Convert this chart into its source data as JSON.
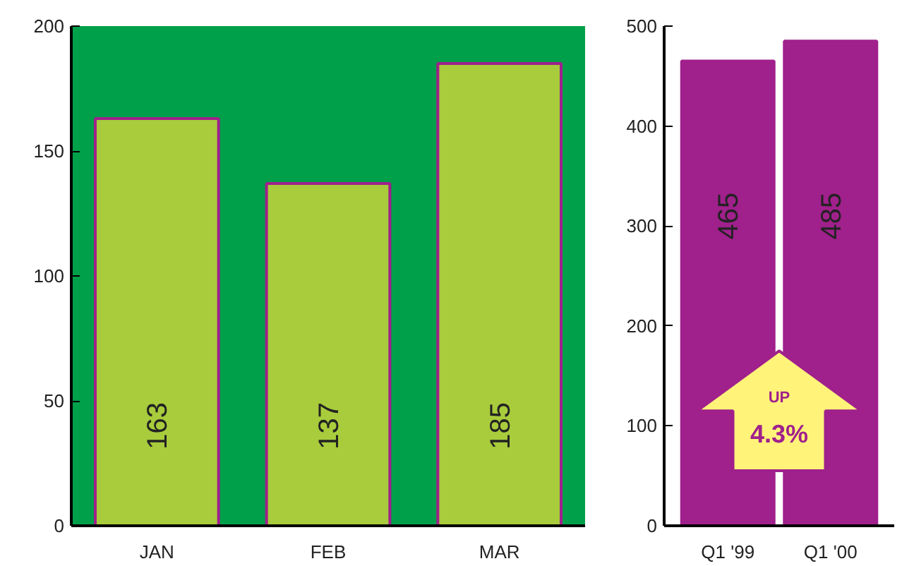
{
  "chart_data": [
    {
      "type": "bar",
      "categories": [
        "JAN",
        "FEB",
        "MAR"
      ],
      "values": [
        163,
        137,
        185
      ],
      "color": "#a8cc3c",
      "ylim": [
        0,
        200
      ],
      "yticks": [
        0,
        50,
        100,
        150,
        200
      ],
      "data_labels": true,
      "grid": false,
      "bands": [
        {
          "axis": "y",
          "from": 0,
          "to": 200,
          "color": "#00a04a"
        }
      ]
    },
    {
      "type": "bar",
      "categories": [
        "Q1 '99",
        "Q1 '00"
      ],
      "values": [
        465,
        485
      ],
      "color": "#a0208c",
      "ylim": [
        0,
        500
      ],
      "yticks": [
        0,
        100,
        200,
        300,
        400,
        500
      ],
      "data_labels": true,
      "grid": false,
      "annotations": [
        "UP",
        "4.3%"
      ]
    }
  ]
}
